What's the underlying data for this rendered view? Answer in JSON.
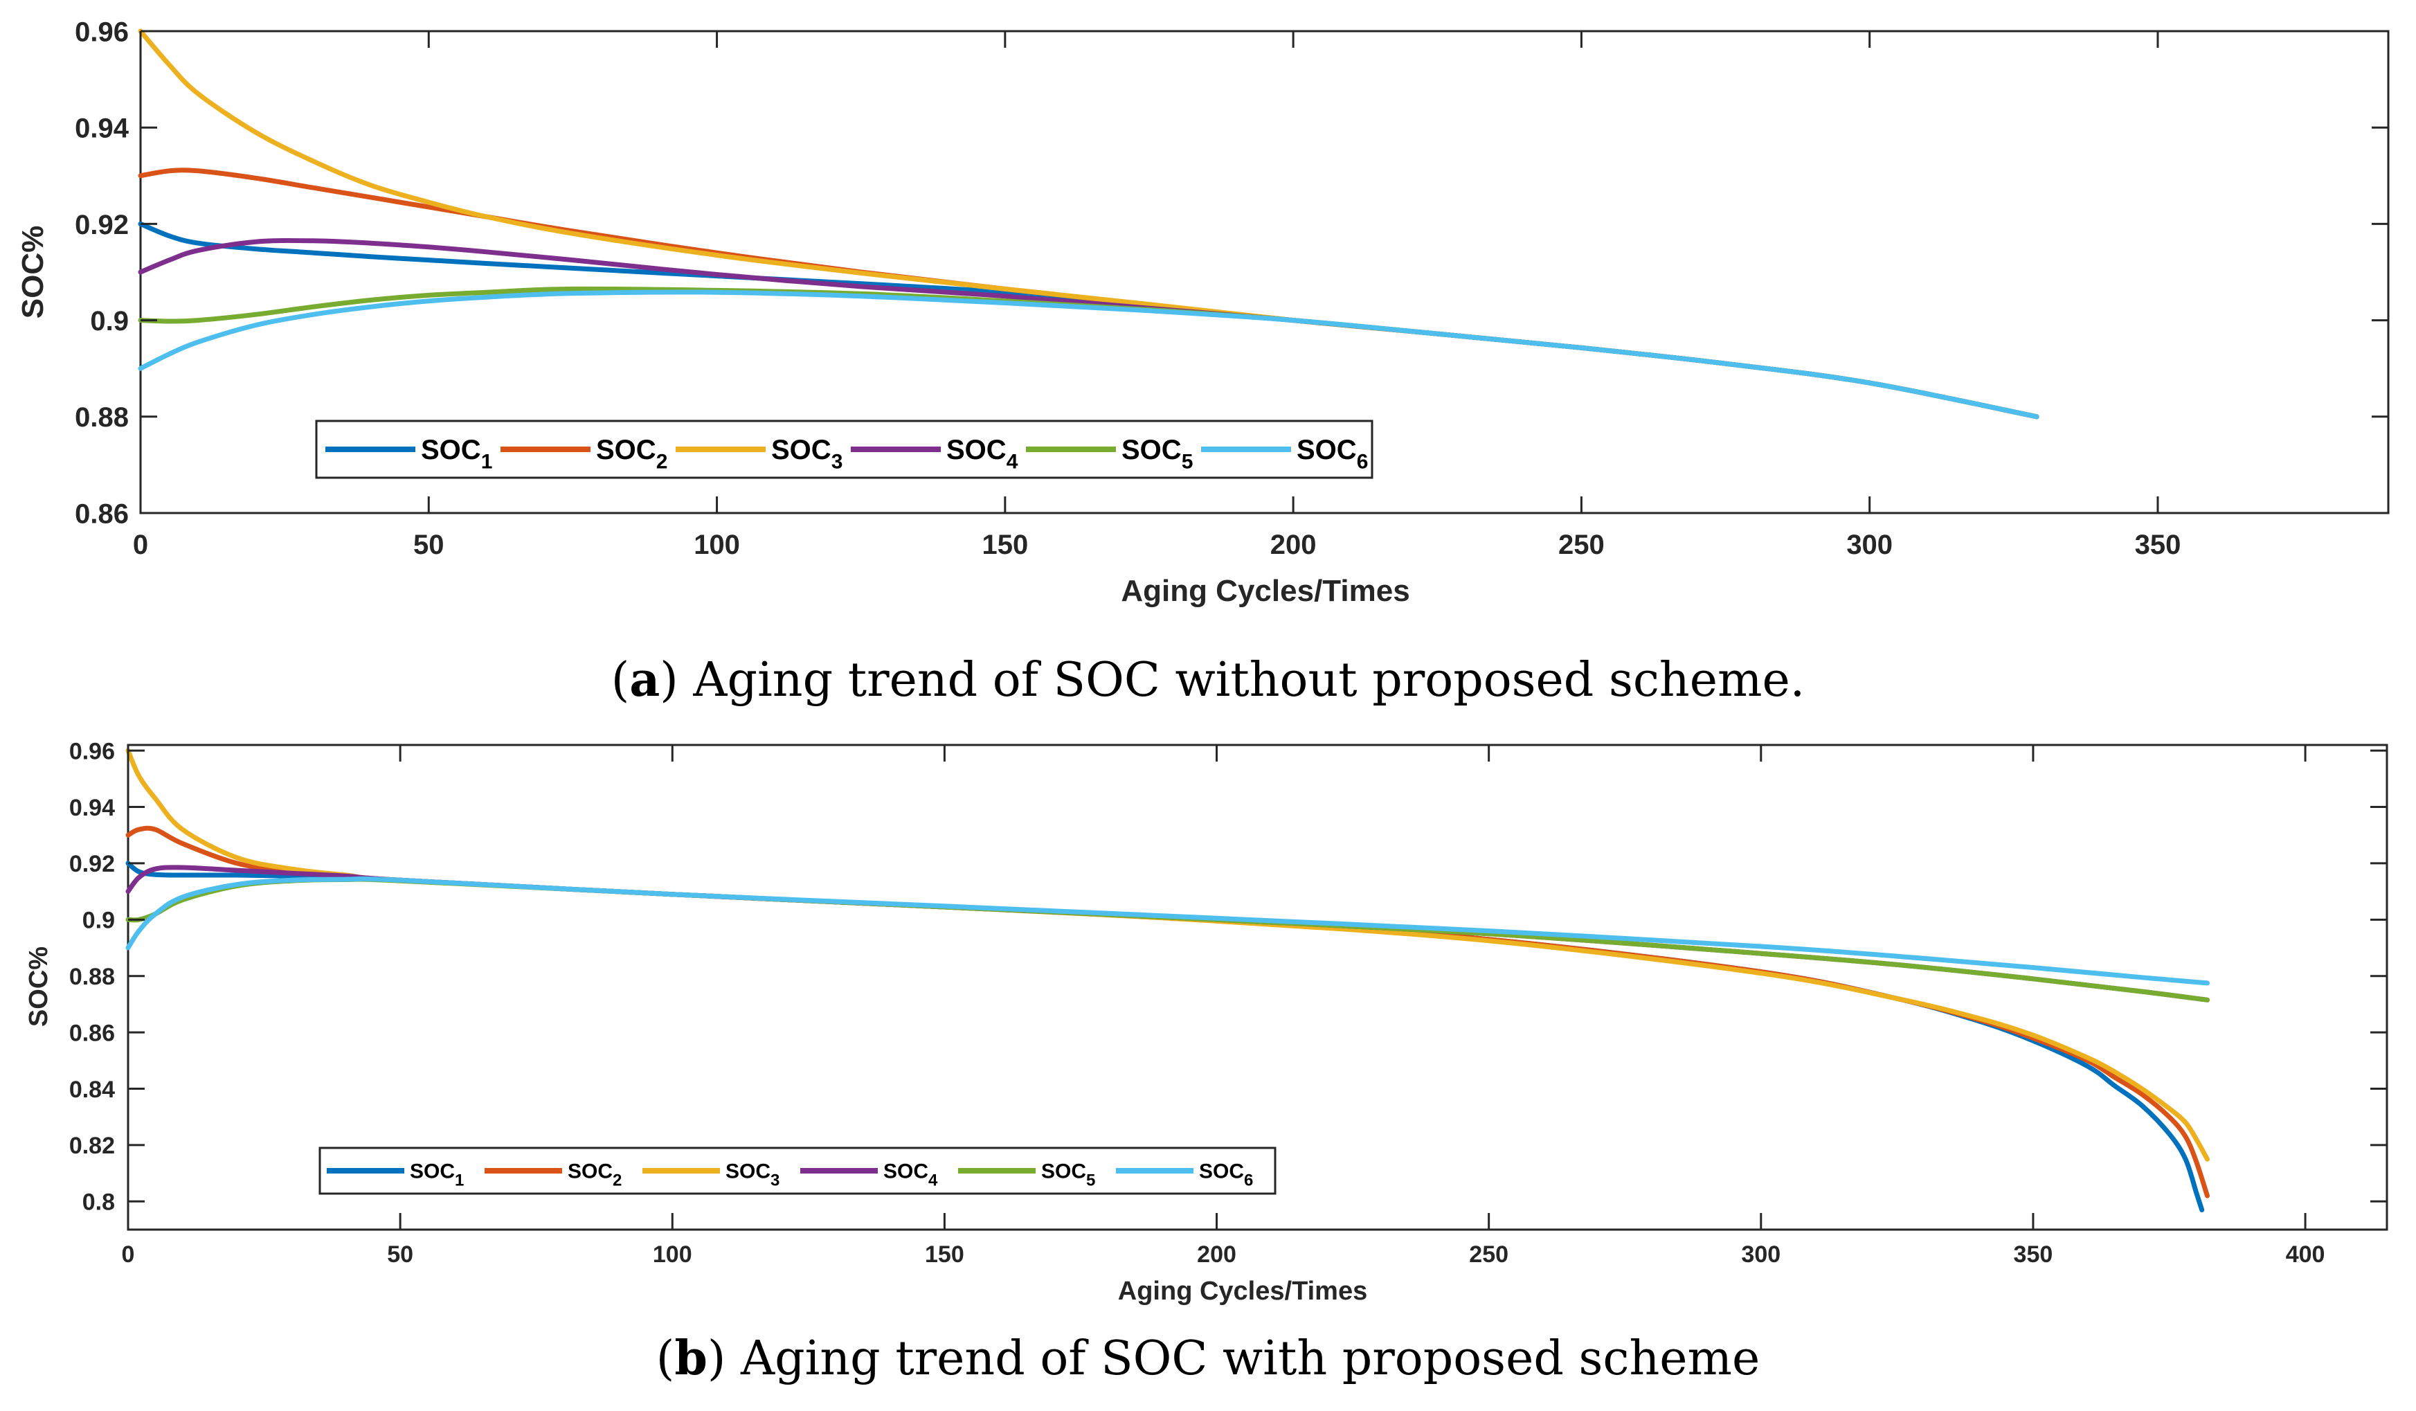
{
  "chart_data": [
    {
      "type": "line",
      "panel": "a",
      "caption_prefix": "(",
      "caption_letter": "a",
      "caption_text": ") Aging trend of SOC without proposed scheme.",
      "xlabel": "Aging Cycles/Times",
      "ylabel": "SOC%",
      "xlim": [
        0,
        390
      ],
      "ylim": [
        0.86,
        0.96
      ],
      "xticks": [
        0,
        50,
        100,
        150,
        200,
        250,
        300,
        350
      ],
      "yticks": [
        0.86,
        0.88,
        0.9,
        0.92,
        0.94,
        0.96
      ],
      "ytick_labels": [
        "0.86",
        "0.88",
        "0.9",
        "0.92",
        "0.94",
        "0.96"
      ],
      "series": [
        {
          "name": "SOC",
          "sub": "1",
          "color": "#0072BD",
          "x": [
            0,
            5,
            10,
            20,
            30,
            40,
            50,
            60,
            75,
            100,
            125,
            150,
            175,
            200,
            225,
            250,
            275,
            300,
            329
          ],
          "y": [
            0.92,
            0.9175,
            0.916,
            0.9148,
            0.914,
            0.9132,
            0.9125,
            0.9118,
            0.9108,
            0.9092,
            0.9076,
            0.9058,
            0.903,
            0.9,
            0.8972,
            0.8943,
            0.891,
            0.887,
            0.88
          ]
        },
        {
          "name": "SOC",
          "sub": "2",
          "color": "#D95319",
          "x": [
            0,
            5,
            10,
            20,
            30,
            40,
            50,
            60,
            75,
            100,
            125,
            150,
            175,
            200,
            225,
            250,
            275,
            300,
            329
          ],
          "y": [
            0.93,
            0.931,
            0.931,
            0.9295,
            0.9275,
            0.9255,
            0.9235,
            0.9215,
            0.9185,
            0.914,
            0.91,
            0.9065,
            0.9032,
            0.9,
            0.8972,
            0.8943,
            0.891,
            0.887,
            0.88
          ]
        },
        {
          "name": "SOC",
          "sub": "3",
          "color": "#EDB120",
          "x": [
            0,
            5,
            10,
            20,
            30,
            40,
            50,
            60,
            75,
            100,
            125,
            150,
            175,
            200,
            225,
            250,
            275,
            300,
            329
          ],
          "y": [
            0.96,
            0.953,
            0.947,
            0.939,
            0.933,
            0.928,
            0.9245,
            0.9215,
            0.918,
            0.9135,
            0.9098,
            0.9065,
            0.9033,
            0.9,
            0.8972,
            0.8943,
            0.891,
            0.887,
            0.88
          ]
        },
        {
          "name": "SOC",
          "sub": "4",
          "color": "#7E2F8E",
          "x": [
            0,
            5,
            10,
            20,
            30,
            40,
            50,
            60,
            75,
            100,
            125,
            150,
            175,
            200,
            225,
            250,
            275,
            300,
            329
          ],
          "y": [
            0.91,
            0.9125,
            0.9145,
            0.9163,
            0.9165,
            0.916,
            0.9152,
            0.9142,
            0.9125,
            0.9095,
            0.907,
            0.905,
            0.9025,
            0.9,
            0.8972,
            0.8943,
            0.891,
            0.887,
            0.88
          ]
        },
        {
          "name": "SOC",
          "sub": "5",
          "color": "#77AC30",
          "x": [
            0,
            5,
            10,
            20,
            30,
            40,
            50,
            60,
            75,
            100,
            125,
            150,
            175,
            200,
            225,
            250,
            275,
            300,
            329
          ],
          "y": [
            0.9,
            0.8998,
            0.9,
            0.9012,
            0.9028,
            0.9042,
            0.9052,
            0.9058,
            0.9065,
            0.9062,
            0.9055,
            0.904,
            0.9022,
            0.9,
            0.8972,
            0.8943,
            0.891,
            0.887,
            0.88
          ]
        },
        {
          "name": "SOC",
          "sub": "6",
          "color": "#4DBEEE",
          "x": [
            0,
            5,
            10,
            20,
            30,
            40,
            50,
            60,
            75,
            100,
            125,
            150,
            175,
            200,
            225,
            250,
            275,
            300,
            329
          ],
          "y": [
            0.89,
            0.893,
            0.8955,
            0.899,
            0.9012,
            0.9028,
            0.904,
            0.9048,
            0.9056,
            0.9058,
            0.905,
            0.9036,
            0.902,
            0.9,
            0.8972,
            0.8943,
            0.891,
            0.887,
            0.88
          ]
        }
      ]
    },
    {
      "type": "line",
      "panel": "b",
      "caption_prefix": "(",
      "caption_letter": "b",
      "caption_text": ") Aging trend of SOC with proposed scheme",
      "xlabel": "Aging Cycles/Times",
      "ylabel": "SOC%",
      "xlim": [
        0,
        415
      ],
      "ylim": [
        0.79,
        0.962
      ],
      "xticks": [
        0,
        50,
        100,
        150,
        200,
        250,
        300,
        350,
        400
      ],
      "yticks": [
        0.8,
        0.82,
        0.84,
        0.86,
        0.88,
        0.9,
        0.92,
        0.94,
        0.96
      ],
      "ytick_labels": [
        "0.8",
        "0.82",
        "0.84",
        "0.86",
        "0.88",
        "0.9",
        "0.92",
        "0.94",
        "0.96"
      ],
      "series": [
        {
          "name": "SOC",
          "sub": "1",
          "color": "#0072BD",
          "x": [
            0,
            2,
            5,
            10,
            20,
            30,
            40,
            50,
            100,
            150,
            200,
            250,
            300,
            325,
            340,
            350,
            360,
            365,
            370,
            375,
            378,
            380,
            381
          ],
          "y": [
            0.92,
            0.917,
            0.916,
            0.9158,
            0.9158,
            0.9155,
            0.915,
            0.914,
            0.909,
            0.9045,
            0.9,
            0.893,
            0.8815,
            0.872,
            0.864,
            0.857,
            0.848,
            0.841,
            0.834,
            0.824,
            0.815,
            0.803,
            0.797
          ]
        },
        {
          "name": "SOC",
          "sub": "2",
          "color": "#D95319",
          "x": [
            0,
            2,
            5,
            10,
            20,
            30,
            40,
            50,
            100,
            150,
            200,
            250,
            300,
            325,
            340,
            350,
            360,
            365,
            370,
            375,
            378,
            380,
            382
          ],
          "y": [
            0.93,
            0.932,
            0.932,
            0.927,
            0.92,
            0.917,
            0.9155,
            0.914,
            0.909,
            0.9045,
            0.9,
            0.893,
            0.8815,
            0.872,
            0.8645,
            0.858,
            0.85,
            0.844,
            0.838,
            0.83,
            0.823,
            0.814,
            0.802
          ]
        },
        {
          "name": "SOC",
          "sub": "3",
          "color": "#EDB120",
          "x": [
            0,
            2,
            5,
            10,
            20,
            30,
            40,
            50,
            100,
            150,
            200,
            250,
            300,
            325,
            340,
            350,
            360,
            365,
            370,
            375,
            378,
            380,
            382
          ],
          "y": [
            0.96,
            0.951,
            0.943,
            0.932,
            0.922,
            0.918,
            0.9158,
            0.914,
            0.909,
            0.9045,
            0.8995,
            0.8925,
            0.881,
            0.872,
            0.865,
            0.859,
            0.851,
            0.846,
            0.84,
            0.833,
            0.828,
            0.822,
            0.815
          ]
        },
        {
          "name": "SOC",
          "sub": "4",
          "color": "#7E2F8E",
          "x": [
            0,
            2,
            5,
            10,
            20,
            30,
            40,
            50,
            100,
            150,
            200,
            250,
            300,
            325,
            350,
            370,
            382
          ],
          "y": [
            0.91,
            0.915,
            0.918,
            0.9185,
            0.9175,
            0.9165,
            0.9155,
            0.914,
            0.909,
            0.9045,
            0.9,
            0.895,
            0.888,
            0.884,
            0.879,
            0.8745,
            0.8715
          ]
        },
        {
          "name": "SOC",
          "sub": "5",
          "color": "#77AC30",
          "x": [
            0,
            2,
            5,
            10,
            20,
            30,
            40,
            50,
            100,
            150,
            200,
            250,
            300,
            325,
            350,
            370,
            382
          ],
          "y": [
            0.9,
            0.9,
            0.902,
            0.907,
            0.912,
            0.9138,
            0.9142,
            0.9138,
            0.909,
            0.9045,
            0.9,
            0.895,
            0.888,
            0.884,
            0.879,
            0.8745,
            0.8715
          ]
        },
        {
          "name": "SOC",
          "sub": "6",
          "color": "#4DBEEE",
          "x": [
            0,
            2,
            5,
            10,
            20,
            30,
            40,
            50,
            100,
            150,
            200,
            250,
            300,
            325,
            350,
            370,
            382
          ],
          "y": [
            0.89,
            0.896,
            0.902,
            0.908,
            0.9125,
            0.914,
            0.9143,
            0.914,
            0.909,
            0.9048,
            0.9005,
            0.896,
            0.8905,
            0.887,
            0.883,
            0.8795,
            0.8775
          ]
        }
      ]
    }
  ]
}
